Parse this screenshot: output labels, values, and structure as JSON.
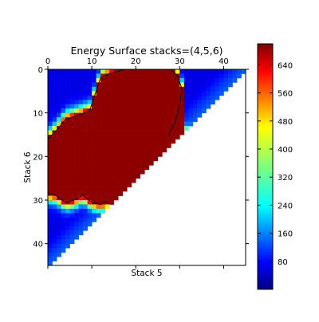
{
  "chart_data": {
    "type": "heatmap",
    "title": "Energy Surface stacks=(4,5,6)",
    "xlabel": "Stack 5",
    "ylabel": "Stack 6",
    "x_axis_position": "top",
    "y_axis_inverted": true,
    "grid": false,
    "xlim": [
      0,
      45
    ],
    "ylim": [
      45,
      0
    ],
    "x_ticks": [
      0,
      10,
      20,
      30,
      40
    ],
    "y_ticks": [
      0,
      10,
      20,
      30,
      40
    ],
    "colorbar": {
      "position": "right",
      "range": [
        0,
        700
      ],
      "ticks": [
        80,
        160,
        240,
        320,
        400,
        480,
        560,
        640
      ],
      "colormap": "jet"
    },
    "grid_size": 45,
    "mask": "upper-left triangle (cells where row + col < 45)",
    "regions": {
      "background_value": 70,
      "plateau_value": 690,
      "contour_level": 600,
      "plateau_boundary_top": [
        {
          "x": 0,
          "y": 16
        },
        {
          "x": 2,
          "y": 14
        },
        {
          "x": 4,
          "y": 11.5
        },
        {
          "x": 7,
          "y": 10.5
        },
        {
          "x": 9.5,
          "y": 9.5
        },
        {
          "x": 11,
          "y": 5
        },
        {
          "x": 12,
          "y": 2
        },
        {
          "x": 14,
          "y": 1
        },
        {
          "x": 17.5,
          "y": 0
        },
        {
          "x": 28,
          "y": 0
        },
        {
          "x": 29.5,
          "y": 1.5
        },
        {
          "x": 30.5,
          "y": 4.5
        },
        {
          "x": 30,
          "y": 8
        },
        {
          "x": 29,
          "y": 12
        },
        {
          "x": 27.5,
          "y": 15
        }
      ],
      "plateau_boundary_bottom": [
        {
          "x": 0,
          "y": 28.5
        },
        {
          "x": 2,
          "y": 29
        },
        {
          "x": 4,
          "y": 30.5
        },
        {
          "x": 6,
          "y": 30
        },
        {
          "x": 8,
          "y": 28.8
        },
        {
          "x": 10,
          "y": 30.5
        },
        {
          "x": 12,
          "y": 31
        },
        {
          "x": 13.5,
          "y": 30.5
        }
      ]
    }
  }
}
